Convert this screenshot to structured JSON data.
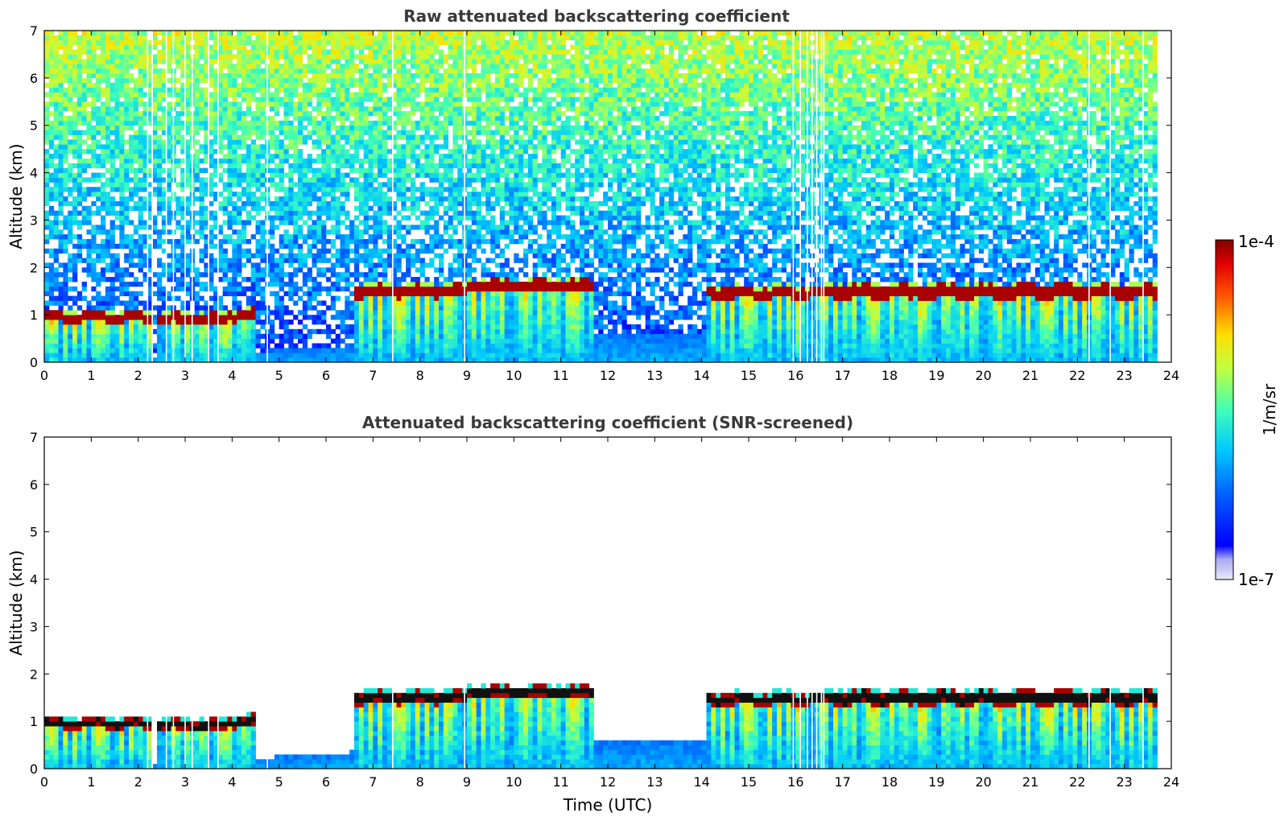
{
  "chart_data": [
    {
      "type": "heatmap",
      "title": "Raw attenuated backscattering coefficient",
      "xlabel": "",
      "ylabel": "Altitude (km)",
      "xlim": [
        0,
        24
      ],
      "ylim": [
        0,
        7
      ],
      "xticks": [
        "0",
        "1",
        "2",
        "3",
        "4",
        "5",
        "6",
        "7",
        "8",
        "9",
        "10",
        "11",
        "12",
        "13",
        "14",
        "15",
        "16",
        "17",
        "18",
        "19",
        "20",
        "21",
        "22",
        "23",
        "24"
      ],
      "yticks": [
        "0",
        "1",
        "2",
        "3",
        "4",
        "5",
        "6",
        "7"
      ],
      "screened": false
    },
    {
      "type": "heatmap",
      "title": "Attenuated backscattering coefficient (SNR-screened)",
      "xlabel": "Time (UTC)",
      "ylabel": "Altitude (km)",
      "xlim": [
        0,
        24
      ],
      "ylim": [
        0,
        7
      ],
      "xticks": [
        "0",
        "1",
        "2",
        "3",
        "4",
        "5",
        "6",
        "7",
        "8",
        "9",
        "10",
        "11",
        "12",
        "13",
        "14",
        "15",
        "16",
        "17",
        "18",
        "19",
        "20",
        "21",
        "22",
        "23",
        "24"
      ],
      "yticks": [
        "0",
        "1",
        "2",
        "3",
        "4",
        "5",
        "6",
        "7"
      ],
      "screened": true
    }
  ],
  "colorbar": {
    "max_label": "1e-4",
    "min_label": "1e-7",
    "unit_label": "1/m/sr",
    "scale": "log",
    "range": [
      1e-07,
      0.0001
    ]
  },
  "cloud_layers": [
    {
      "t0": 0.0,
      "t1": 2.25,
      "base": 0.85,
      "top": 1.05
    },
    {
      "t0": 2.4,
      "t1": 3.9,
      "base": 0.8,
      "top": 1.02
    },
    {
      "t0": 3.9,
      "t1": 4.5,
      "base": 0.88,
      "top": 1.1
    },
    {
      "t0": 6.6,
      "t1": 9.0,
      "base": 1.38,
      "top": 1.62
    },
    {
      "t0": 9.0,
      "t1": 11.7,
      "base": 1.5,
      "top": 1.73
    },
    {
      "t0": 14.1,
      "t1": 16.7,
      "base": 1.35,
      "top": 1.58
    },
    {
      "t0": 16.7,
      "t1": 23.7,
      "base": 1.35,
      "top": 1.63
    }
  ],
  "data_gaps_hours": [
    2.2,
    2.3,
    2.6,
    2.75,
    3.0,
    3.15,
    3.5,
    3.7,
    4.75,
    7.42,
    8.95,
    15.95,
    16.1,
    16.25,
    16.35,
    16.45,
    16.55,
    16.6,
    22.25,
    22.7,
    23.4
  ],
  "colors": {
    "axis": "#000000",
    "title": "#3a3a3a",
    "cloud_core": "#8b0000",
    "screened_core": "#111111"
  }
}
